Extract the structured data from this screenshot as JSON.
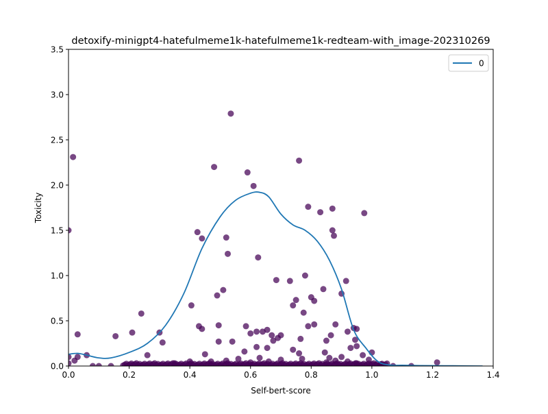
{
  "chart_data": {
    "type": "scatter",
    "title": "detoxify-minigpt4-hatefulmeme1k-hatefulmeme1k-redteam-with_image-202310269",
    "xlabel": "Self-bert-score",
    "ylabel": "Toxicity",
    "xlim": [
      0,
      1.4
    ],
    "ylim": [
      0,
      3.5
    ],
    "xticks": [
      "0.0",
      "0.2",
      "0.4",
      "0.6",
      "0.8",
      "1.0",
      "1.2",
      "1.4"
    ],
    "yticks": [
      "0.0",
      "0.5",
      "1.0",
      "1.5",
      "2.0",
      "2.5",
      "3.0",
      "3.5"
    ],
    "grid": false,
    "legend": {
      "placement": "top-right",
      "entries": [
        "0"
      ]
    },
    "colors": {
      "points": "#440154",
      "line": "#1f77b4"
    },
    "scatter": [
      [
        0.0,
        1.5
      ],
      [
        0.015,
        2.31
      ],
      [
        0.0,
        0.1
      ],
      [
        0.03,
        0.35
      ],
      [
        0.03,
        0.1
      ],
      [
        0.02,
        0.06
      ],
      [
        0.06,
        0.12
      ],
      [
        0.0,
        0.03
      ],
      [
        0.155,
        0.33
      ],
      [
        0.21,
        0.37
      ],
      [
        0.24,
        0.58
      ],
      [
        0.26,
        0.12
      ],
      [
        0.3,
        0.37
      ],
      [
        0.31,
        0.26
      ],
      [
        0.405,
        0.67
      ],
      [
        0.425,
        1.48
      ],
      [
        0.44,
        1.41
      ],
      [
        0.43,
        0.44
      ],
      [
        0.44,
        0.41
      ],
      [
        0.45,
        0.13
      ],
      [
        0.48,
        2.2
      ],
      [
        0.49,
        0.78
      ],
      [
        0.51,
        0.84
      ],
      [
        0.52,
        1.42
      ],
      [
        0.525,
        1.24
      ],
      [
        0.495,
        0.45
      ],
      [
        0.495,
        0.27
      ],
      [
        0.535,
        2.79
      ],
      [
        0.54,
        0.27
      ],
      [
        0.59,
        2.14
      ],
      [
        0.61,
        1.99
      ],
      [
        0.625,
        1.2
      ],
      [
        0.585,
        0.44
      ],
      [
        0.6,
        0.36
      ],
      [
        0.62,
        0.38
      ],
      [
        0.64,
        0.38
      ],
      [
        0.655,
        0.4
      ],
      [
        0.67,
        0.34
      ],
      [
        0.675,
        0.28
      ],
      [
        0.69,
        0.31
      ],
      [
        0.7,
        0.34
      ],
      [
        0.685,
        0.95
      ],
      [
        0.73,
        0.94
      ],
      [
        0.74,
        0.67
      ],
      [
        0.75,
        0.73
      ],
      [
        0.76,
        2.27
      ],
      [
        0.765,
        0.3
      ],
      [
        0.775,
        0.59
      ],
      [
        0.78,
        1.0
      ],
      [
        0.79,
        1.76
      ],
      [
        0.8,
        0.76
      ],
      [
        0.81,
        0.72
      ],
      [
        0.79,
        0.44
      ],
      [
        0.81,
        0.46
      ],
      [
        0.83,
        1.7
      ],
      [
        0.84,
        0.85
      ],
      [
        0.85,
        0.28
      ],
      [
        0.865,
        0.34
      ],
      [
        0.87,
        1.74
      ],
      [
        0.87,
        1.5
      ],
      [
        0.875,
        1.44
      ],
      [
        0.88,
        0.46
      ],
      [
        0.9,
        0.8
      ],
      [
        0.915,
        0.94
      ],
      [
        0.92,
        0.38
      ],
      [
        0.94,
        0.42
      ],
      [
        0.945,
        0.29
      ],
      [
        0.95,
        0.22
      ],
      [
        0.975,
        1.69
      ],
      [
        0.93,
        0.2
      ],
      [
        0.9,
        0.1
      ],
      [
        0.95,
        0.41
      ],
      [
        0.97,
        0.12
      ],
      [
        0.99,
        0.07
      ],
      [
        1.0,
        0.15
      ],
      [
        0.62,
        0.21
      ],
      [
        0.655,
        0.2
      ],
      [
        0.58,
        0.16
      ],
      [
        0.74,
        0.18
      ],
      [
        0.76,
        0.14
      ],
      [
        0.845,
        0.15
      ],
      [
        0.86,
        0.09
      ],
      [
        0.7,
        0.07
      ],
      [
        0.63,
        0.09
      ],
      [
        0.56,
        0.08
      ],
      [
        0.52,
        0.06
      ],
      [
        0.47,
        0.05
      ],
      [
        0.4,
        0.05
      ],
      [
        0.35,
        0.03
      ],
      [
        0.85,
        0.04
      ],
      [
        0.88,
        0.06
      ],
      [
        0.92,
        0.05
      ],
      [
        0.95,
        0.03
      ],
      [
        0.77,
        0.08
      ],
      [
        0.66,
        0.05
      ],
      [
        0.6,
        0.04
      ],
      [
        1.07,
        0.0
      ],
      [
        1.13,
        0.0
      ],
      [
        1.215,
        0.04
      ],
      [
        1.03,
        0.02
      ],
      [
        0.1,
        0.0
      ],
      [
        0.14,
        0.0
      ],
      [
        0.08,
        0.0
      ]
    ],
    "baseline_cluster": {
      "x_start": 0.18,
      "x_end": 1.05,
      "count": 160,
      "y": 0.005
    },
    "kde_line": {
      "x": [
        0.0,
        0.03,
        0.06,
        0.1,
        0.14,
        0.2,
        0.26,
        0.32,
        0.38,
        0.44,
        0.5,
        0.55,
        0.6,
        0.63,
        0.66,
        0.7,
        0.74,
        0.78,
        0.82,
        0.86,
        0.9,
        0.94,
        0.98,
        1.02,
        1.06,
        1.1,
        1.16,
        1.24,
        1.32,
        1.365
      ],
      "y": [
        0.13,
        0.14,
        0.12,
        0.09,
        0.09,
        0.15,
        0.25,
        0.45,
        0.8,
        1.3,
        1.65,
        1.83,
        1.91,
        1.92,
        1.87,
        1.68,
        1.56,
        1.5,
        1.38,
        1.17,
        0.85,
        0.4,
        0.2,
        0.05,
        0.01,
        0.008,
        0.005,
        0.003,
        0.001,
        0.0
      ]
    }
  }
}
